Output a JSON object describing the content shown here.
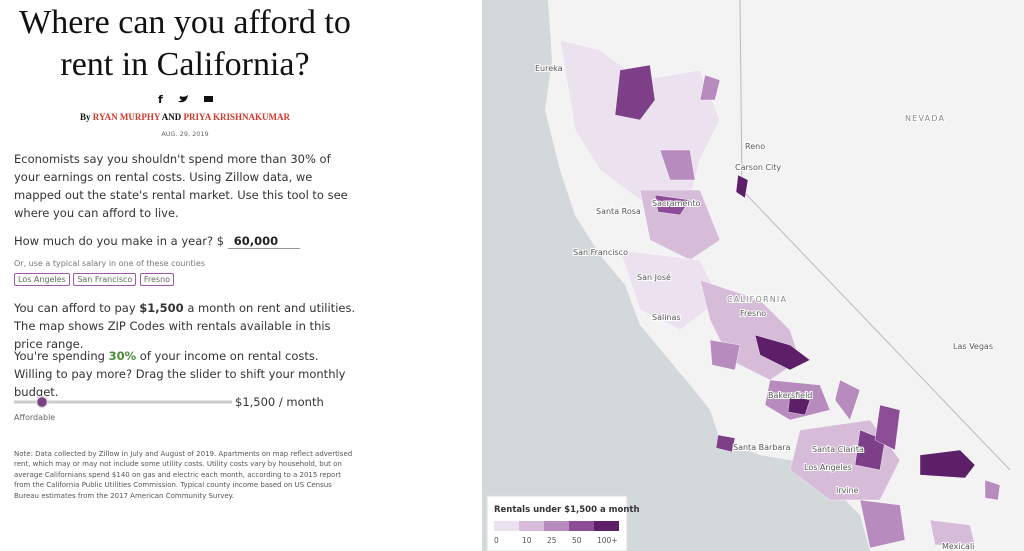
{
  "header": {
    "title": "Where can you afford to rent in California?",
    "by": "By",
    "author1": "RYAN MURPHY",
    "and": "AND",
    "author2": "PRIYA KRISHNAKUMAR",
    "date": "AUG. 29, 2019"
  },
  "intro": "Economists say you shouldn't spend more than 30% of your earnings on rental costs. Using Zillow data, we mapped out the state's rental market. Use this tool to see where you can afford to live.",
  "income": {
    "question": "How much do you make in a year? $",
    "value": "60,000",
    "hint": "Or, use a typical salary in one of these counties",
    "counties": [
      "Los Angeles",
      "San Francisco",
      "Fresno"
    ]
  },
  "result": {
    "before": "You can afford to pay ",
    "amount": "$1,500",
    "after": " a month on rent and utilities. The map shows ZIP Codes with rentals available in this price range."
  },
  "spending": {
    "before": "You're spending ",
    "percent": "30%",
    "after": " of your income on rental costs. Willing to pay more? Drag the slider to shift your monthly budget."
  },
  "slider": {
    "value_label": "$1,500 / month",
    "left_label": "Affordable"
  },
  "note": "Note: Data collected by Zillow in July and August of 2019. Apartments on map reflect advertised rent, which may or may not include some utility costs. Utility costs vary by household, but on average Californians spend $140 on gas and electric each month, according to a 2015 report from the California Public Utilities Commission. Typical county income based on US Census Bureau estimates from the 2017 American Community Survey.",
  "map": {
    "labels": [
      "NEVADA",
      "Reno",
      "Carson City",
      "Sacramento",
      "Santa Rosa",
      "San Francisco",
      "San José",
      "CALIFORNIA",
      "Fresno",
      "Salinas",
      "Las Vegas",
      "Bakersfield",
      "Santa Barbara",
      "Santa Clarita",
      "Los Angeles",
      "Irvine",
      "Eureka",
      "Mexicali"
    ],
    "legend": {
      "title": "Rentals under $1,500 a month",
      "ticks": [
        "0",
        "10",
        "25",
        "50",
        "100+"
      ],
      "colors": [
        "#ece1ee",
        "#d6bcd9",
        "#b88bbe",
        "#8c4c96",
        "#5c1f68"
      ]
    }
  }
}
